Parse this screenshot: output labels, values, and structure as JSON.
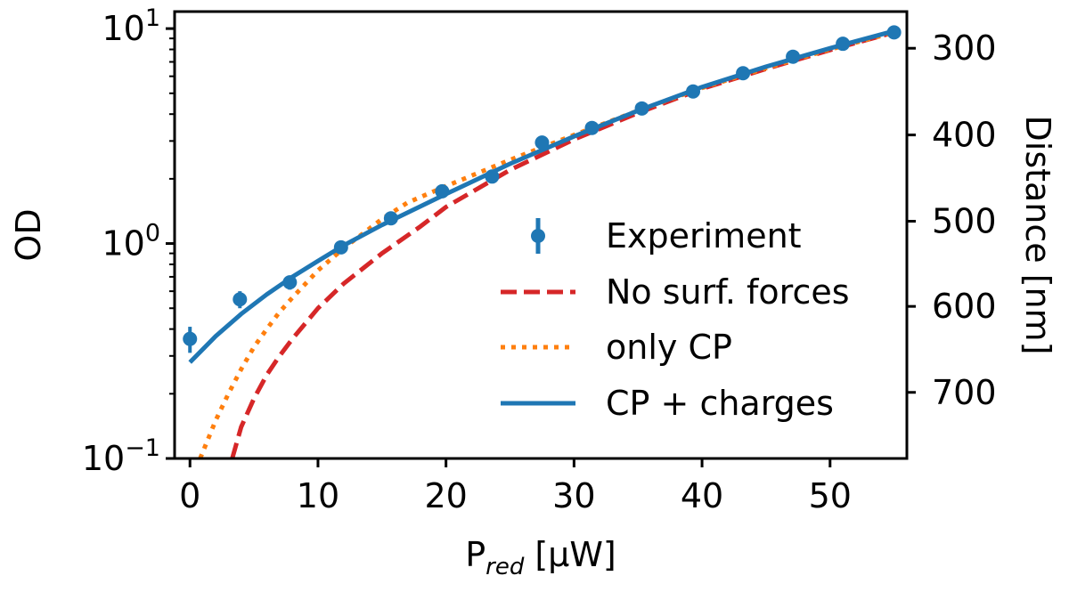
{
  "chart_data": {
    "type": "line",
    "title": "",
    "xlabel": {
      "main": "P",
      "sub": "red",
      "unit": "[μW]"
    },
    "ylabel": "OD",
    "y2label": "Distance [nm]",
    "yscale": "log",
    "xlim": [
      -1.2,
      56
    ],
    "ylim": [
      0.1,
      12
    ],
    "x_ticks": [
      0,
      10,
      20,
      30,
      40,
      50
    ],
    "y_ticks": [
      {
        "value": 0.1,
        "base": "10",
        "exp": "−1"
      },
      {
        "value": 1,
        "base": "10",
        "exp": "0"
      },
      {
        "value": 10,
        "base": "10",
        "exp": "1"
      }
    ],
    "y2_ticks": [
      {
        "label": "300",
        "od": 8.1
      },
      {
        "label": "400",
        "od": 3.2
      },
      {
        "label": "500",
        "od": 1.27
      },
      {
        "label": "600",
        "od": 0.51
      },
      {
        "label": "700",
        "od": 0.203
      }
    ],
    "legend_position": "lower-right",
    "grid": false,
    "series": [
      {
        "name": "Experiment",
        "kind": "errorbar",
        "color": "#1f77b4",
        "x": [
          0,
          3.9,
          7.8,
          11.8,
          15.7,
          19.7,
          23.6,
          27.5,
          31.4,
          35.3,
          39.3,
          43.2,
          47.1,
          51.0,
          55.0
        ],
        "y": [
          0.36,
          0.55,
          0.66,
          0.96,
          1.31,
          1.75,
          2.05,
          2.95,
          3.45,
          4.25,
          5.1,
          6.2,
          7.4,
          8.5,
          9.6
        ],
        "yerr": [
          0.05,
          0.05,
          0.05,
          0.05,
          0.04,
          0.04,
          0.04,
          0.05,
          0.05,
          0.06,
          0.06,
          0.07,
          0.08,
          0.08,
          0.1
        ]
      },
      {
        "name": "No surf. forces",
        "kind": "line",
        "style": "dashed",
        "color": "#d62728",
        "x": [
          3.3,
          4,
          5,
          6,
          7,
          8,
          10,
          12,
          15,
          18,
          20,
          25,
          30,
          35,
          40,
          45,
          50,
          55
        ],
        "y": [
          0.1,
          0.14,
          0.19,
          0.245,
          0.3,
          0.36,
          0.5,
          0.65,
          0.9,
          1.2,
          1.48,
          2.2,
          3.05,
          4.05,
          5.25,
          6.5,
          7.95,
          9.6
        ]
      },
      {
        "name": "only CP",
        "kind": "line",
        "style": "dotted",
        "color": "#ff7f0e",
        "x": [
          0.8,
          2,
          3,
          4,
          5,
          6,
          7,
          8,
          10,
          12,
          15,
          17,
          20,
          25,
          30,
          35,
          40,
          45,
          50,
          55
        ],
        "y": [
          0.1,
          0.15,
          0.2,
          0.26,
          0.33,
          0.4,
          0.48,
          0.56,
          0.75,
          0.95,
          1.3,
          1.55,
          1.85,
          2.45,
          3.2,
          4.15,
          5.3,
          6.55,
          8.0,
          9.6
        ]
      },
      {
        "name": "CP + charges",
        "kind": "line",
        "style": "solid",
        "color": "#1f77b4",
        "x": [
          0,
          2,
          4,
          6,
          8,
          10,
          12,
          15,
          20,
          25,
          30,
          35,
          40,
          45,
          50,
          55
        ],
        "y": [
          0.28,
          0.37,
          0.47,
          0.58,
          0.7,
          0.83,
          0.98,
          1.22,
          1.7,
          2.35,
          3.15,
          4.15,
          5.35,
          6.65,
          8.1,
          9.75
        ]
      }
    ]
  }
}
